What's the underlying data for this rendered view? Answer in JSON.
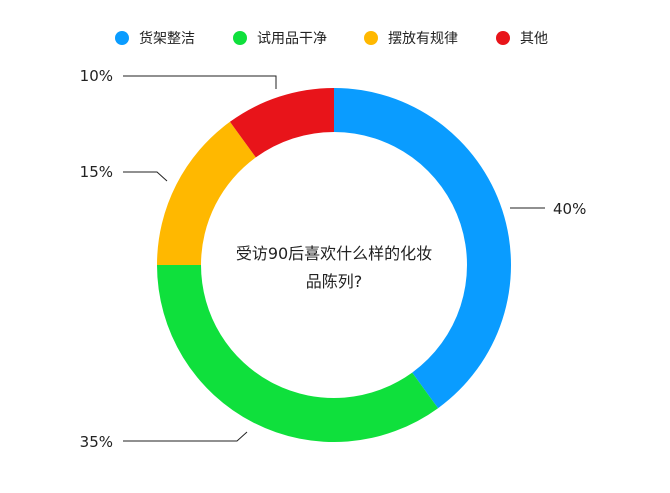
{
  "chart_data": {
    "type": "pie",
    "variant": "donut",
    "title": "受访90后喜欢什么样的化妆品陈列?",
    "title_lines": [
      "受访90后喜欢什么样的化妆品陈列?",
      ""
    ],
    "center_lines": [
      "受访90后喜欢什么样的化妆",
      "品陈列?"
    ],
    "legend_position": "top",
    "slices": [
      {
        "name": "货架整洁",
        "value": 40,
        "label": "40%",
        "color": "#0a9cff"
      },
      {
        "name": "试用品干净",
        "value": 35,
        "label": "35%",
        "color": "#0fe03c"
      },
      {
        "name": "摆放有规律",
        "value": 15,
        "label": "15%",
        "color": "#ffb800"
      },
      {
        "name": "其他",
        "value": 10,
        "label": "10%",
        "color": "#e8141a"
      }
    ]
  }
}
